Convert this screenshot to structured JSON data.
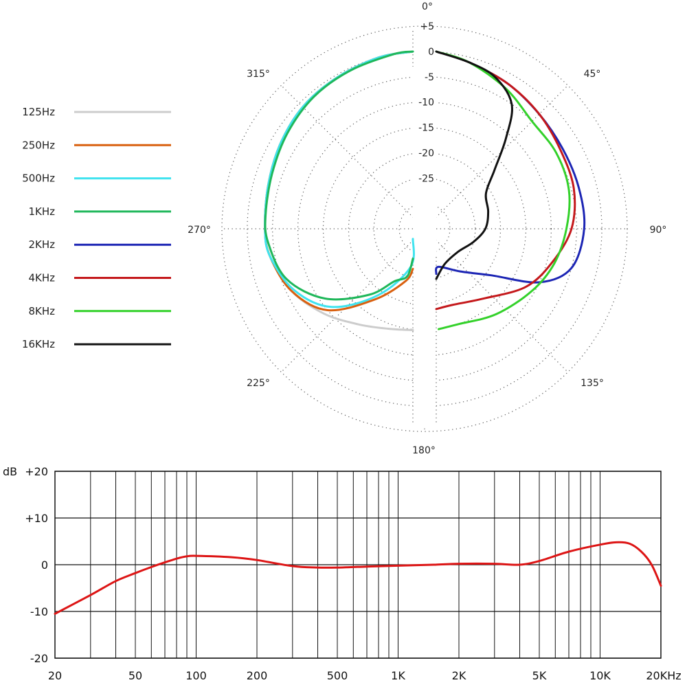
{
  "chart_data": [
    {
      "type": "polar",
      "legend": [
        {
          "name": "125Hz",
          "color": "#cccccc"
        },
        {
          "name": "250Hz",
          "color": "#d9600f"
        },
        {
          "name": "500Hz",
          "color": "#3fe3ef"
        },
        {
          "name": "1KHz",
          "color": "#1fb75a"
        },
        {
          "name": "2KHz",
          "color": "#1c25b4"
        },
        {
          "name": "4KHz",
          "color": "#c4181b"
        },
        {
          "name": "8KHz",
          "color": "#33d12a"
        },
        {
          "name": "16KHz",
          "color": "#111111"
        }
      ],
      "legend_position": "left",
      "angle_labels": [
        "0°",
        "45°",
        "90°",
        "135°",
        "180°",
        "225°",
        "270°",
        "315°"
      ],
      "radial_labels": [
        "+5",
        "0",
        "-5",
        "-10",
        "-15",
        "-20",
        "-25"
      ],
      "radial_range_db": [
        -35,
        5
      ],
      "grid": true,
      "series": [
        {
          "name": "125Hz",
          "left": [
            [
              180,
              -15
            ],
            [
              200,
              -14
            ],
            [
              215,
              -12
            ],
            [
              230,
              -9
            ],
            [
              245,
              -6
            ],
            [
              260,
              -4
            ],
            [
              270,
              -3.5
            ],
            [
              285,
              -3
            ],
            [
              300,
              -2
            ],
            [
              315,
              -1
            ],
            [
              330,
              -0.5
            ],
            [
              345,
              0
            ],
            [
              358,
              0
            ]
          ]
        },
        {
          "name": "250Hz",
          "left": [
            [
              188,
              -27
            ],
            [
              200,
              -24
            ],
            [
              215,
              -18
            ],
            [
              230,
              -10
            ],
            [
              245,
              -6
            ],
            [
              260,
              -4
            ],
            [
              270,
              -3.5
            ],
            [
              285,
              -3
            ],
            [
              300,
              -2
            ],
            [
              315,
              -1
            ],
            [
              330,
              -0.5
            ],
            [
              345,
              0
            ],
            [
              358,
              0
            ]
          ]
        },
        {
          "name": "500Hz",
          "left": [
            [
              185,
              -33
            ],
            [
              200,
              -27
            ],
            [
              215,
              -19
            ],
            [
              230,
              -11
            ],
            [
              245,
              -6.5
            ],
            [
              260,
              -4
            ],
            [
              270,
              -3.5
            ],
            [
              285,
              -3
            ],
            [
              300,
              -2
            ],
            [
              315,
              -1
            ],
            [
              330,
              -0.5
            ],
            [
              345,
              0
            ],
            [
              358,
              0
            ]
          ]
        },
        {
          "name": "1KHz",
          "left": [
            [
              190,
              -29
            ],
            [
              200,
              -25
            ],
            [
              210,
              -23
            ],
            [
              220,
              -18
            ],
            [
              235,
              -11
            ],
            [
              250,
              -6
            ],
            [
              265,
              -4
            ],
            [
              275,
              -3.5
            ],
            [
              290,
              -3
            ],
            [
              305,
              -2
            ],
            [
              320,
              -1
            ],
            [
              335,
              -0.5
            ],
            [
              350,
              0
            ],
            [
              358,
              0
            ]
          ]
        },
        {
          "name": "2KHz",
          "right": [
            [
              2,
              0
            ],
            [
              15,
              -1
            ],
            [
              30,
              -2
            ],
            [
              45,
              -3
            ],
            [
              60,
              -3.5
            ],
            [
              75,
              -3.5
            ],
            [
              90,
              -3.5
            ],
            [
              105,
              -5
            ],
            [
              115,
              -10
            ],
            [
              125,
              -19
            ],
            [
              140,
              -24
            ],
            [
              160,
              -27
            ],
            [
              172,
              -26
            ]
          ]
        },
        {
          "name": "4KHz",
          "right": [
            [
              2,
              0
            ],
            [
              15,
              -1
            ],
            [
              30,
              -2
            ],
            [
              45,
              -3
            ],
            [
              60,
              -4
            ],
            [
              75,
              -4.5
            ],
            [
              90,
              -6
            ],
            [
              105,
              -9
            ],
            [
              120,
              -12
            ],
            [
              140,
              -17
            ],
            [
              160,
              -19
            ],
            [
              172,
              -19
            ]
          ]
        },
        {
          "name": "8KHz",
          "right": [
            [
              2,
              0
            ],
            [
              15,
              -1
            ],
            [
              30,
              -3
            ],
            [
              45,
              -5
            ],
            [
              60,
              -5
            ],
            [
              75,
              -5.5
            ],
            [
              90,
              -7
            ],
            [
              105,
              -8.5
            ],
            [
              120,
              -10.5
            ],
            [
              140,
              -13
            ],
            [
              160,
              -15
            ],
            [
              172,
              -15
            ]
          ]
        },
        {
          "name": "16KHz",
          "right": [
            [
              2,
              0
            ],
            [
              15,
              -1
            ],
            [
              25,
              -2
            ],
            [
              35,
              -5
            ],
            [
              42,
              -11
            ],
            [
              50,
              -17
            ],
            [
              60,
              -21
            ],
            [
              75,
              -22
            ],
            [
              90,
              -23
            ],
            [
              105,
              -25
            ],
            [
              125,
              -27
            ],
            [
              150,
              -27
            ],
            [
              172,
              -25
            ]
          ]
        }
      ]
    },
    {
      "type": "line",
      "xscale": "log",
      "ylabel": "dB",
      "x_tick_labels": [
        "20",
        "50",
        "100",
        "200",
        "500",
        "1K",
        "2K",
        "5K",
        "10K",
        "20KHz"
      ],
      "x_tick_values": [
        20,
        50,
        100,
        200,
        500,
        1000,
        2000,
        5000,
        10000,
        20000
      ],
      "y_tick_labels": [
        "+20",
        "+10",
        "0",
        "-10",
        "-20"
      ],
      "y_tick_values": [
        20,
        10,
        0,
        -10,
        -20
      ],
      "xlim": [
        20,
        20000
      ],
      "ylim": [
        -20,
        20
      ],
      "grid": true,
      "series": [
        {
          "color": "#dd1515",
          "points": [
            [
              20,
              -10.5
            ],
            [
              30,
              -6.5
            ],
            [
              40,
              -3.5
            ],
            [
              50,
              -1.8
            ],
            [
              60,
              -0.5
            ],
            [
              70,
              0.5
            ],
            [
              80,
              1.3
            ],
            [
              90,
              1.8
            ],
            [
              100,
              1.9
            ],
            [
              150,
              1.6
            ],
            [
              200,
              1.0
            ],
            [
              300,
              -0.3
            ],
            [
              400,
              -0.6
            ],
            [
              500,
              -0.6
            ],
            [
              700,
              -0.4
            ],
            [
              1000,
              -0.2
            ],
            [
              1500,
              0.0
            ],
            [
              2000,
              0.2
            ],
            [
              3000,
              0.2
            ],
            [
              4000,
              0.0
            ],
            [
              5000,
              0.8
            ],
            [
              7000,
              2.8
            ],
            [
              10000,
              4.3
            ],
            [
              12000,
              4.8
            ],
            [
              14000,
              4.5
            ],
            [
              16000,
              2.8
            ],
            [
              18000,
              0.0
            ],
            [
              20000,
              -4.5
            ]
          ]
        }
      ]
    }
  ]
}
